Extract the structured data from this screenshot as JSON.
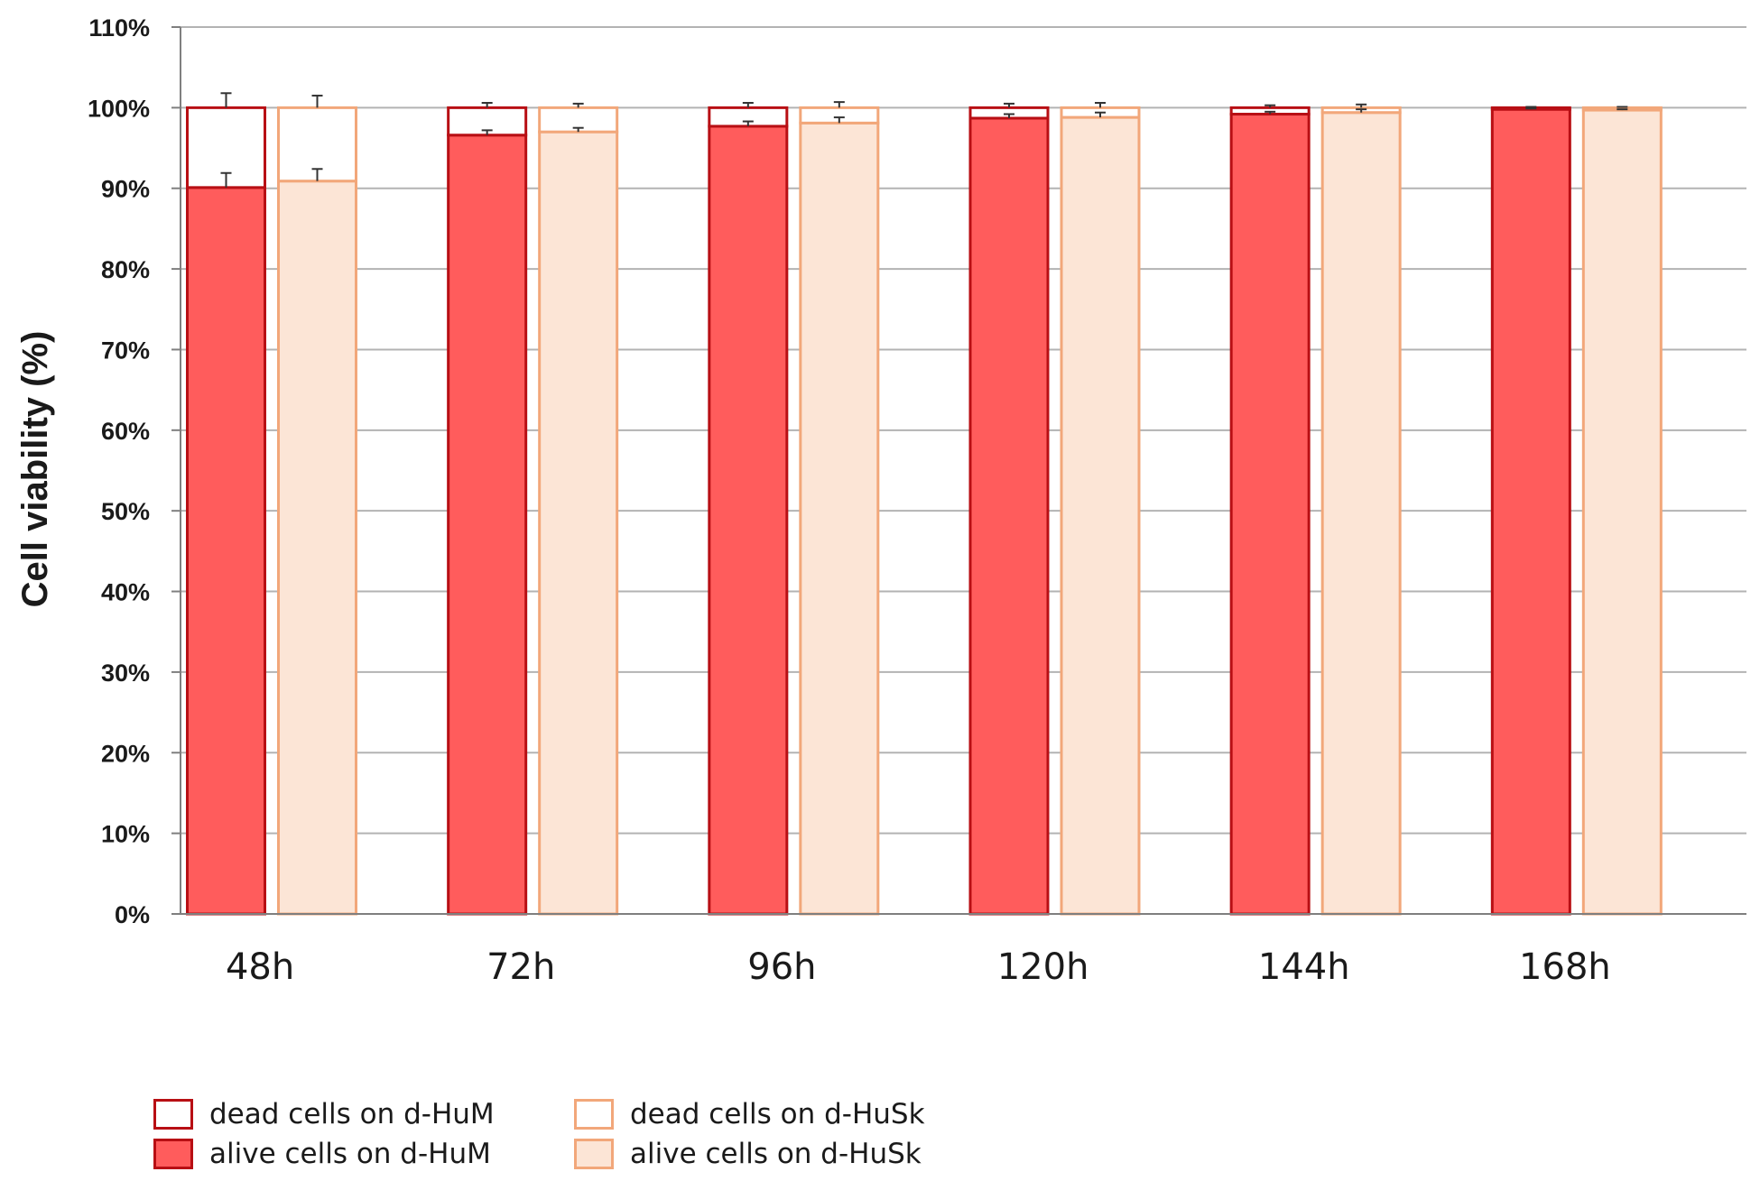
{
  "chart_data": {
    "type": "bar",
    "stacked": true,
    "title": "",
    "xlabel": "",
    "ylabel": "Cell viability (%)",
    "ylim": [
      0,
      110
    ],
    "y_tick_labels": [
      "0%",
      "10%",
      "20%",
      "30%",
      "40%",
      "50%",
      "60%",
      "70%",
      "80%",
      "90%",
      "100%",
      "110%"
    ],
    "grid": "horizontal",
    "legend_position": "bottom-left",
    "categories": [
      "48h",
      "72h",
      "96h",
      "120h",
      "144h",
      "168h"
    ],
    "groups": [
      {
        "group": "d-HuM",
        "stack": [
          {
            "name": "alive cells on d-HuM",
            "values": [
              90.1,
              96.6,
              97.7,
              98.7,
              99.2,
              99.8
            ],
            "error": [
              1.8,
              0.6,
              0.6,
              0.5,
              0.3,
              0.1
            ],
            "color": "#ff5c5c",
            "border": "#b80f14"
          },
          {
            "name": "dead cells on d-HuM",
            "values": [
              9.9,
              3.4,
              2.3,
              1.3,
              0.8,
              0.2
            ],
            "error": [
              1.8,
              0.6,
              0.6,
              0.5,
              0.3,
              0.1
            ],
            "color": "#ffffff",
            "border": "#b80f14"
          }
        ]
      },
      {
        "group": "d-HuSk",
        "stack": [
          {
            "name": "alive cells on d-HuSk",
            "values": [
              90.9,
              97.0,
              98.1,
              98.8,
              99.4,
              99.7
            ],
            "error": [
              1.5,
              0.5,
              0.7,
              0.6,
              0.4,
              0.1
            ],
            "color": "#fce5d6",
            "border": "#f2a77a"
          },
          {
            "name": "dead cells on d-HuSk",
            "values": [
              9.1,
              3.0,
              1.9,
              1.2,
              0.6,
              0.3
            ],
            "error": [
              1.5,
              0.5,
              0.7,
              0.6,
              0.4,
              0.1
            ],
            "color": "#ffffff",
            "border": "#f2a77a"
          }
        ]
      }
    ]
  },
  "legend": {
    "items": [
      {
        "label": "dead cells on d-HuM",
        "fill": "#ffffff",
        "border": "#b80f14"
      },
      {
        "label": "alive cells on d-HuM",
        "fill": "#ff5c5c",
        "border": "#b80f14"
      },
      {
        "label": "dead cells on d-HuSk",
        "fill": "#ffffff",
        "border": "#f2a77a"
      },
      {
        "label": "alive cells on d-HuSk",
        "fill": "#fce5d6",
        "border": "#f2a77a"
      }
    ]
  }
}
